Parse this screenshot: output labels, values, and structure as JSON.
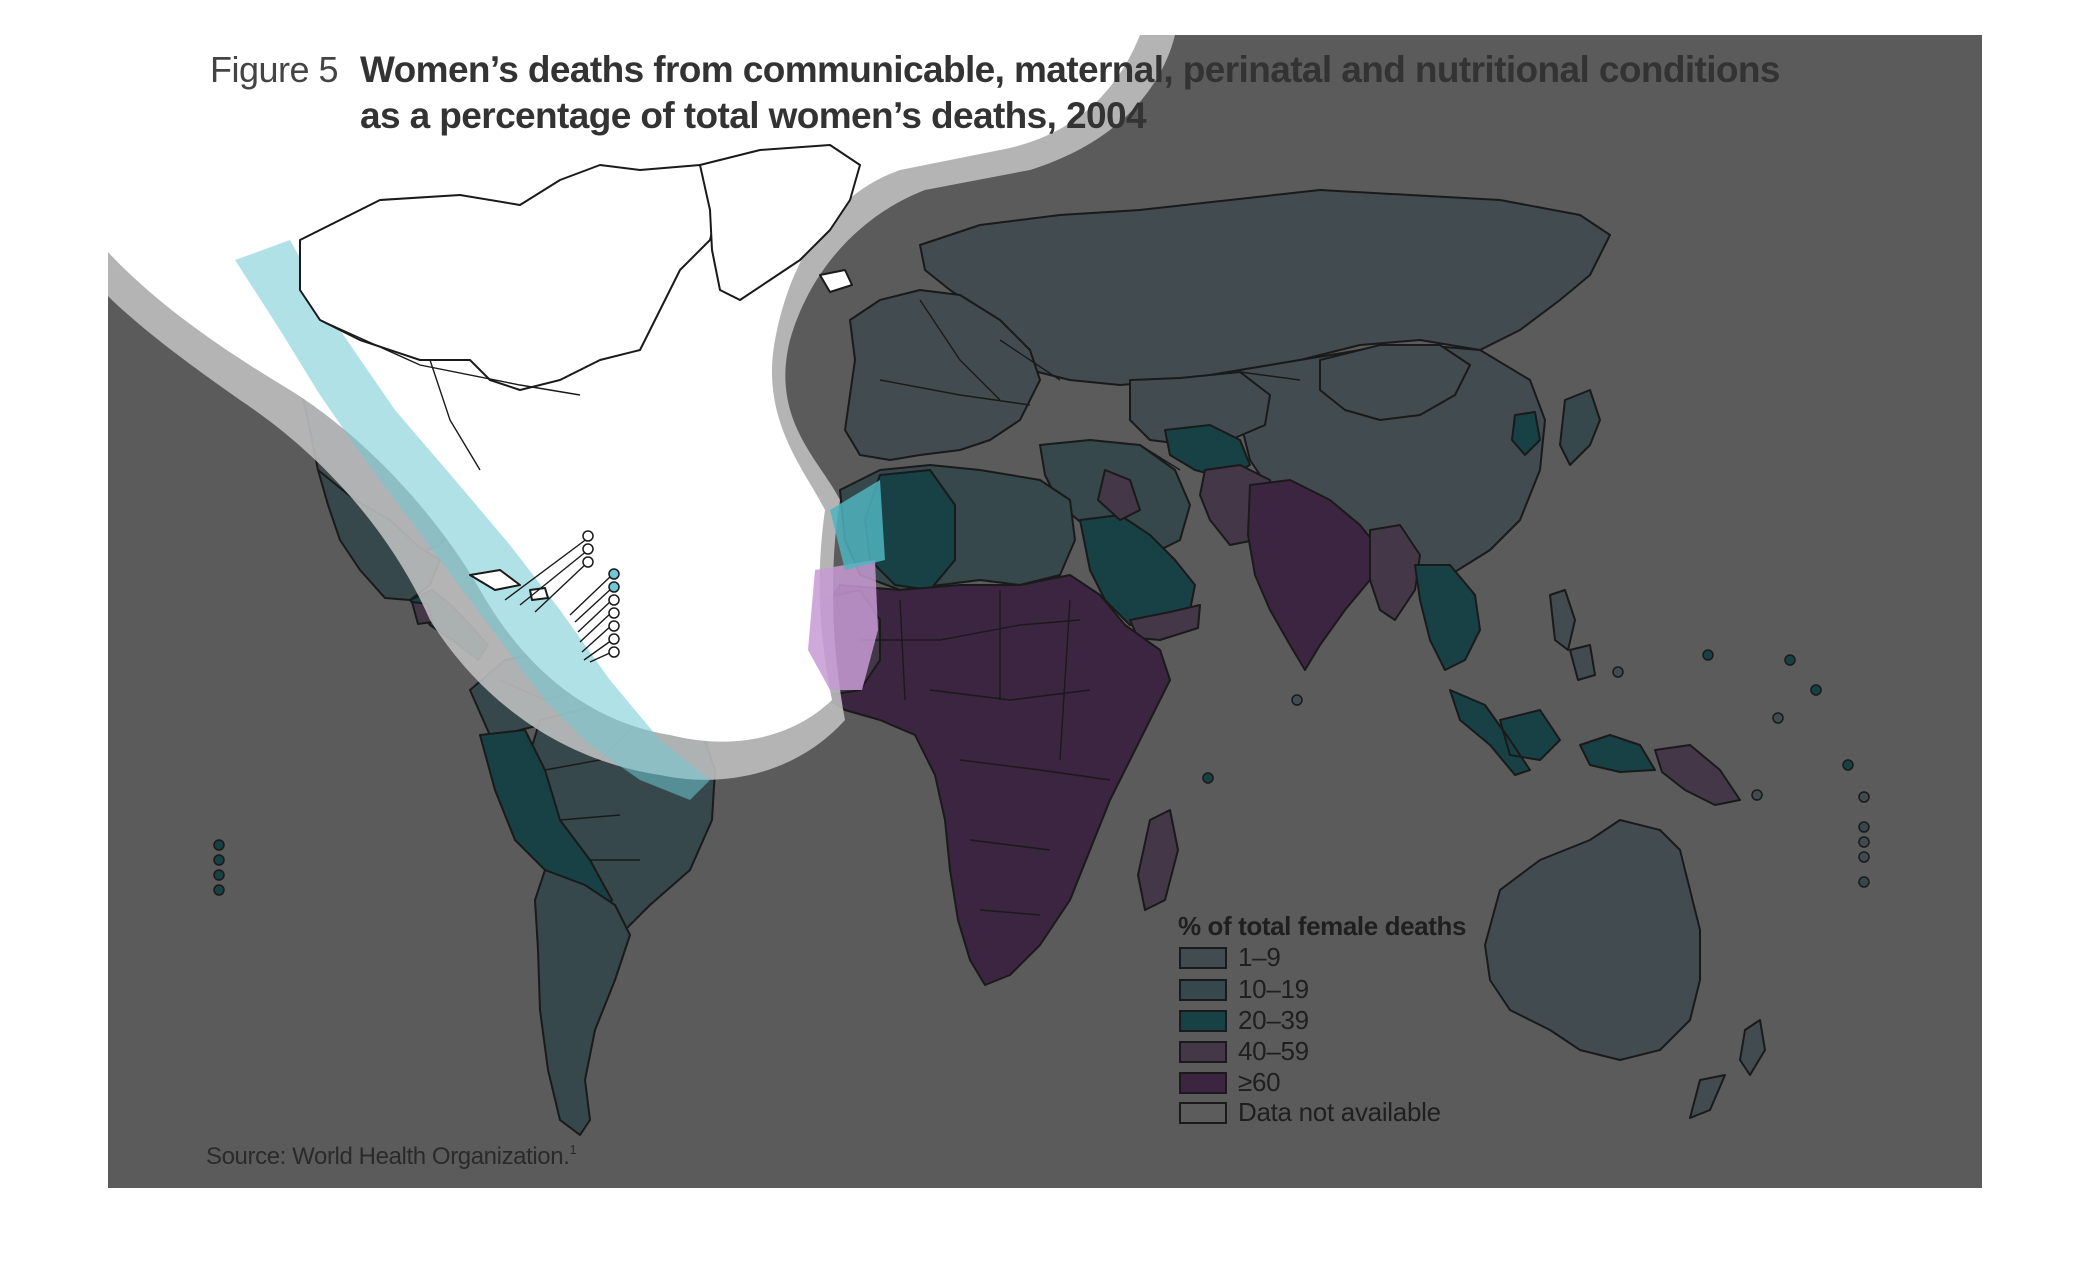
{
  "figure": {
    "label": "Figure 5",
    "title_line1": "Women’s deaths from communicable, maternal, perinatal and nutritional conditions",
    "title_line2": "as a percentage of total women’s deaths, 2004"
  },
  "legend": {
    "title": "% of total female deaths",
    "items": [
      {
        "label": "1–9",
        "color": "#424c50"
      },
      {
        "label": "10–19",
        "color": "#36484b"
      },
      {
        "label": "20–39",
        "color": "#174144"
      },
      {
        "label": "40–59",
        "color": "#443848"
      },
      {
        "label": "≥60",
        "color": "#3c2540"
      },
      {
        "label": "Data not available",
        "color": "#5c5c5c"
      }
    ]
  },
  "source": "Source: World Health Organization.",
  "source_note": "1",
  "colors": {
    "background": "#5b5b5b",
    "arc_halo": "#c0c0c0",
    "arc_inner": "#ffffff",
    "highlight_cyan": "#6fc9d2",
    "highlight_pink": "#c79ad3"
  }
}
